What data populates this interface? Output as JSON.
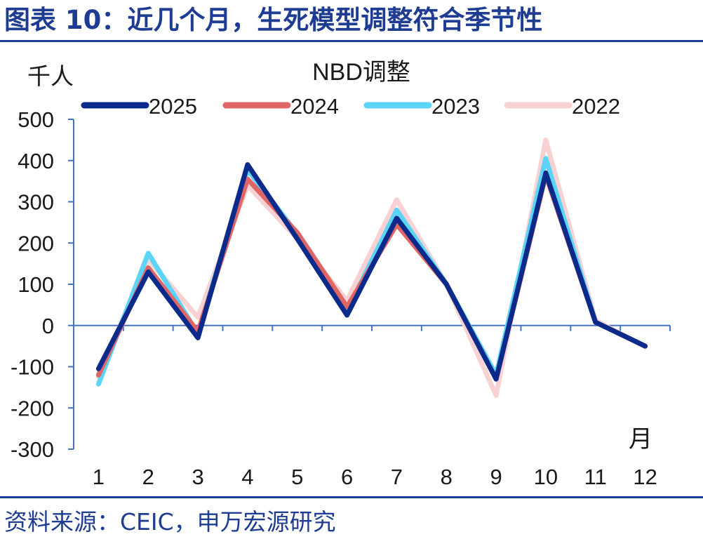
{
  "title": "图表 10：近几个月，生死模型调整符合季节性",
  "source": "资料来源：CEIC，申万宏源研究",
  "chart_data": {
    "type": "line",
    "title": "NBD调整",
    "ylabel": "千人",
    "xlabel": "月",
    "categories": [
      "1",
      "2",
      "3",
      "4",
      "5",
      "6",
      "7",
      "8",
      "9",
      "10",
      "11",
      "12"
    ],
    "ylim": [
      -300,
      500
    ],
    "yticks": [
      "500",
      "400",
      "300",
      "200",
      "100",
      "0",
      "-100",
      "-200",
      "-300"
    ],
    "legend_position": "top",
    "series": [
      {
        "name": "2025",
        "color": "#0b2b8c",
        "values": [
          -105,
          130,
          -30,
          390,
          210,
          25,
          260,
          100,
          -130,
          370,
          8,
          -50
        ]
      },
      {
        "name": "2024",
        "color": "#e06666",
        "values": [
          -120,
          140,
          -15,
          355,
          225,
          45,
          245,
          100,
          -130,
          365,
          8,
          -50
        ]
      },
      {
        "name": "2023",
        "color": "#5bd4f7",
        "values": [
          -142,
          175,
          -20,
          378,
          222,
          35,
          280,
          100,
          -120,
          405,
          8,
          -50
        ]
      },
      {
        "name": "2022",
        "color": "#f8d2d2",
        "values": [
          -125,
          160,
          20,
          340,
          210,
          60,
          305,
          100,
          -170,
          450,
          12,
          -52
        ]
      }
    ]
  }
}
